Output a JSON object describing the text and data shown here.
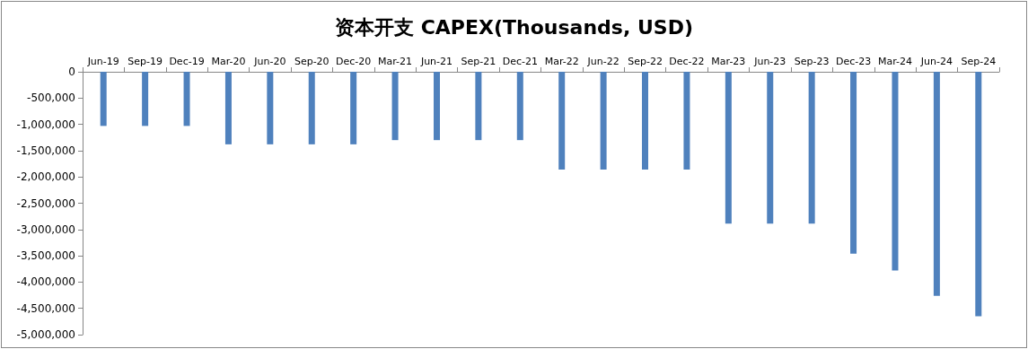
{
  "chart_data": {
    "type": "bar",
    "title": "资本开支 CAPEX(Thousands, USD)",
    "categories": [
      "Jun-19",
      "Sep-19",
      "Dec-19",
      "Mar-20",
      "Jun-20",
      "Sep-20",
      "Dec-20",
      "Mar-21",
      "Jun-21",
      "Sep-21",
      "Dec-21",
      "Mar-22",
      "Jun-22",
      "Sep-22",
      "Dec-22",
      "Mar-23",
      "Jun-23",
      "Sep-23",
      "Dec-23",
      "Mar-24",
      "Jun-24",
      "Sep-24"
    ],
    "values": [
      -1030000,
      -1030000,
      -1030000,
      -1380000,
      -1380000,
      -1380000,
      -1380000,
      -1300000,
      -1300000,
      -1300000,
      -1300000,
      -1860000,
      -1860000,
      -1860000,
      -1860000,
      -2890000,
      -2890000,
      -2890000,
      -3460000,
      -3780000,
      -4260000,
      -4650000
    ],
    "color": "#4f81bd",
    "ylim": [
      -5000000,
      0
    ],
    "yticks": [
      {
        "value": -5000000,
        "label": "-5,000,000"
      },
      {
        "value": -4500000,
        "label": "-4,500,000"
      },
      {
        "value": -4000000,
        "label": "-4,000,000"
      },
      {
        "value": -3500000,
        "label": "-3,500,000"
      },
      {
        "value": -3000000,
        "label": "-3,000,000"
      },
      {
        "value": -2500000,
        "label": "-2,500,000"
      },
      {
        "value": -2000000,
        "label": "-2,000,000"
      },
      {
        "value": -1500000,
        "label": "-1,500,000"
      },
      {
        "value": -1000000,
        "label": "-1,000,000"
      },
      {
        "value": -500000,
        "label": "-500,000"
      },
      0
    ],
    "grid": false
  }
}
